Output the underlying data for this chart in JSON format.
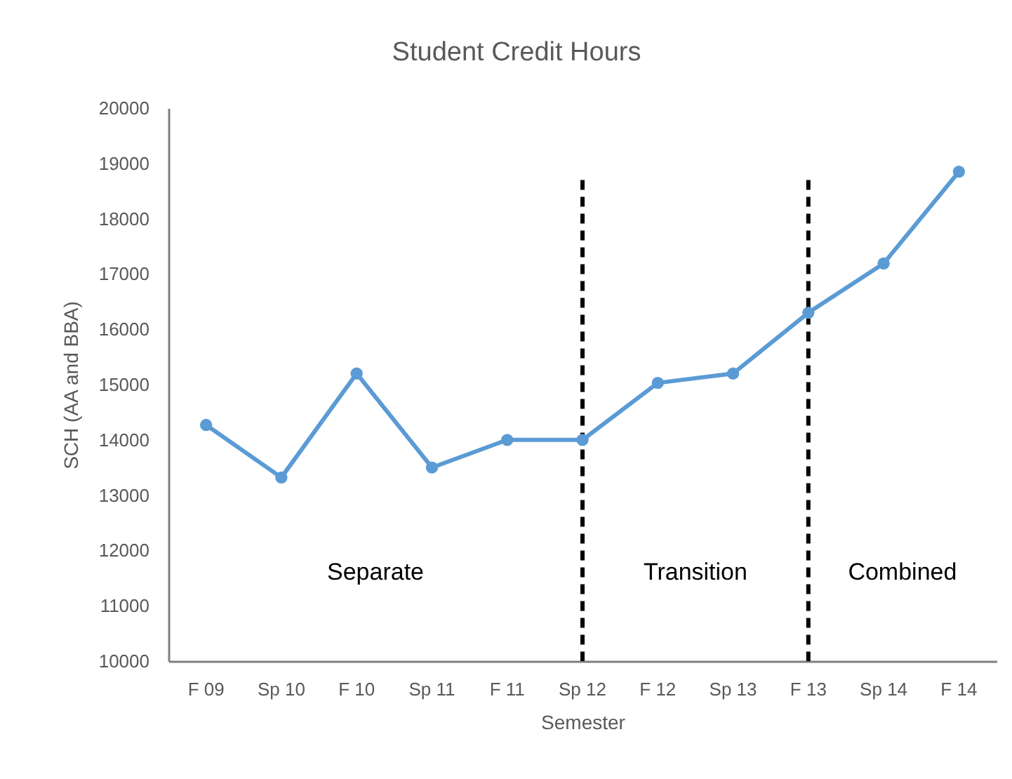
{
  "chart_data": {
    "type": "line",
    "title": "Student Credit Hours",
    "xlabel": "Semester",
    "ylabel": "SCH (AA and BBA)",
    "categories": [
      "F 09",
      "Sp 10",
      "F 10",
      "Sp 11",
      "F 11",
      "Sp 12",
      "F 12",
      "Sp 13",
      "F 13",
      "Sp 14",
      "F 14"
    ],
    "values": [
      14270,
      13320,
      15200,
      13500,
      14000,
      14000,
      15030,
      15200,
      16300,
      17190,
      18850
    ],
    "color": "#5b9bd5",
    "marker": "circle",
    "line_style": "solid",
    "ylim": [
      10000,
      20000
    ],
    "yticks": [
      10000,
      11000,
      12000,
      13000,
      14000,
      15000,
      16000,
      17000,
      18000,
      19000,
      20000
    ],
    "grid": false,
    "ref_lines": [
      {
        "axis": "x",
        "value": "Sp 12",
        "color": "#000000",
        "line_style": "dashed"
      },
      {
        "axis": "x",
        "value": "F 13",
        "color": "#000000",
        "line_style": "dashed"
      }
    ],
    "annotations": [
      "Separate",
      "Transition",
      "Combined"
    ]
  }
}
